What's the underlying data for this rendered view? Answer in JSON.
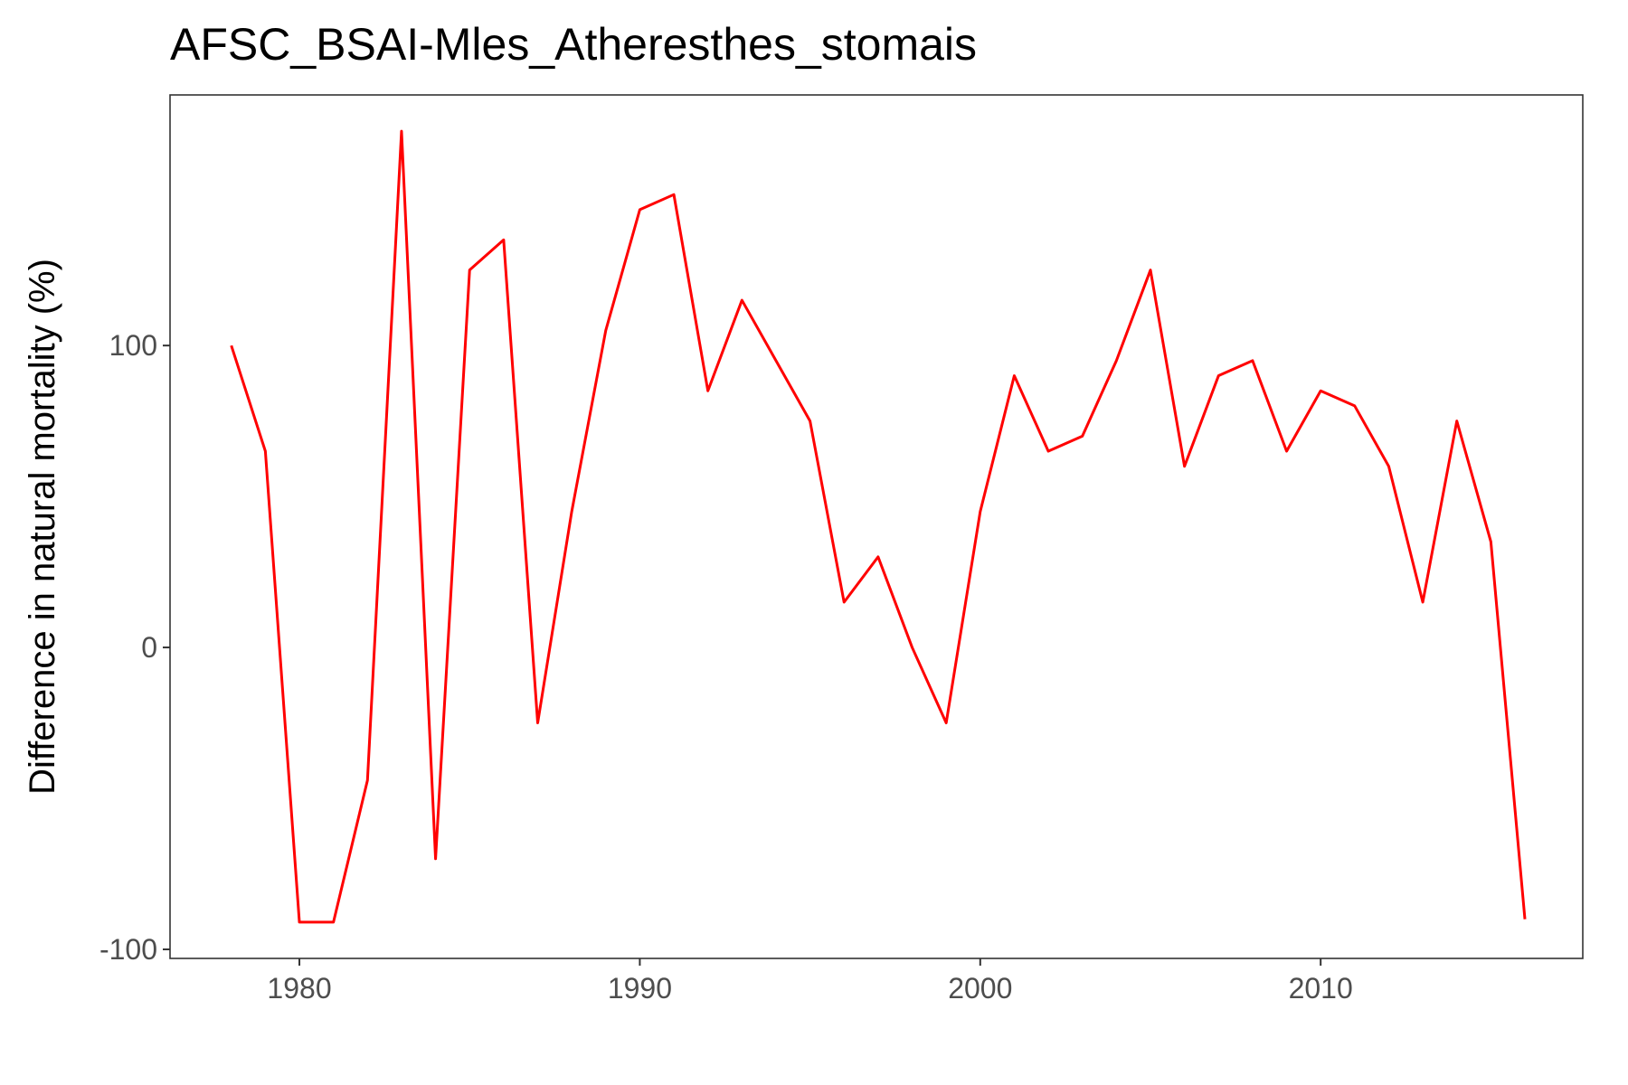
{
  "chart_data": {
    "type": "line",
    "title": "AFSC_BSAI-Mles_Atheresthes_stomais",
    "xlabel": "",
    "ylabel": "Difference in natural mortality (%)",
    "xlim": [
      1976.2,
      2017.7
    ],
    "ylim": [
      -103,
      183
    ],
    "x_ticks": [
      1980,
      1990,
      2000,
      2010
    ],
    "x_tick_labels": [
      "1980",
      "1990",
      "2000",
      "2010"
    ],
    "y_ticks": [
      -100,
      0,
      100
    ],
    "y_tick_labels": [
      "-100",
      "0",
      "100"
    ],
    "grid": false,
    "legend": "none",
    "series": [
      {
        "color": "#ff0000",
        "x": [
          1978,
          1979,
          1980,
          1981,
          1982,
          1983,
          1984,
          1985,
          1986,
          1987,
          1988,
          1989,
          1990,
          1991,
          1992,
          1993,
          1994,
          1995,
          1996,
          1997,
          1998,
          1999,
          2000,
          2001,
          2002,
          2003,
          2004,
          2005,
          2006,
          2007,
          2008,
          2009,
          2010,
          2011,
          2012,
          2013,
          2014,
          2015,
          2016
        ],
        "y": [
          100,
          65,
          -91,
          -91,
          -44,
          171,
          -70,
          125,
          135,
          -25,
          45,
          105,
          145,
          150,
          85,
          115,
          95,
          75,
          15,
          30,
          0,
          -25,
          45,
          90,
          65,
          70,
          95,
          125,
          60,
          90,
          95,
          65,
          85,
          80,
          60,
          15,
          75,
          35,
          -90
        ]
      }
    ]
  }
}
